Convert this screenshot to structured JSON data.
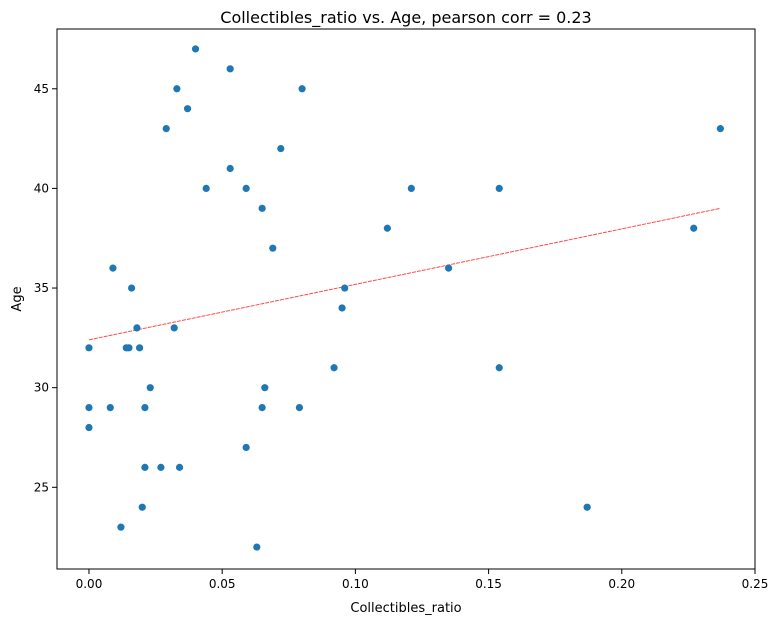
{
  "chart_data": {
    "type": "scatter",
    "title": "Collectibles_ratio vs. Age, pearson corr = 0.23",
    "xlabel": "Collectibles_ratio",
    "ylabel": "Age",
    "xlim": [
      -0.012,
      0.25
    ],
    "ylim": [
      20.9,
      48.0
    ],
    "xticks": [
      "0.00",
      "0.05",
      "0.10",
      "0.15",
      "0.20",
      "0.25"
    ],
    "yticks": [
      "25",
      "30",
      "35",
      "40",
      "45"
    ],
    "grid": false,
    "point_color": "#1f77b4",
    "trend_color": "#ff0000",
    "points": [
      {
        "x": 0.0,
        "y": 32
      },
      {
        "x": 0.0,
        "y": 29
      },
      {
        "x": 0.0,
        "y": 28
      },
      {
        "x": 0.008,
        "y": 29
      },
      {
        "x": 0.009,
        "y": 36
      },
      {
        "x": 0.012,
        "y": 23
      },
      {
        "x": 0.014,
        "y": 32
      },
      {
        "x": 0.015,
        "y": 32
      },
      {
        "x": 0.016,
        "y": 35
      },
      {
        "x": 0.018,
        "y": 33
      },
      {
        "x": 0.019,
        "y": 32
      },
      {
        "x": 0.02,
        "y": 24
      },
      {
        "x": 0.021,
        "y": 26
      },
      {
        "x": 0.021,
        "y": 29
      },
      {
        "x": 0.023,
        "y": 30
      },
      {
        "x": 0.027,
        "y": 26
      },
      {
        "x": 0.029,
        "y": 43
      },
      {
        "x": 0.032,
        "y": 33
      },
      {
        "x": 0.033,
        "y": 45
      },
      {
        "x": 0.034,
        "y": 26
      },
      {
        "x": 0.037,
        "y": 44
      },
      {
        "x": 0.04,
        "y": 47
      },
      {
        "x": 0.044,
        "y": 40
      },
      {
        "x": 0.053,
        "y": 46
      },
      {
        "x": 0.053,
        "y": 41
      },
      {
        "x": 0.059,
        "y": 40
      },
      {
        "x": 0.059,
        "y": 27
      },
      {
        "x": 0.063,
        "y": 22
      },
      {
        "x": 0.065,
        "y": 39
      },
      {
        "x": 0.065,
        "y": 29
      },
      {
        "x": 0.066,
        "y": 30
      },
      {
        "x": 0.069,
        "y": 37
      },
      {
        "x": 0.072,
        "y": 42
      },
      {
        "x": 0.079,
        "y": 29
      },
      {
        "x": 0.08,
        "y": 45
      },
      {
        "x": 0.092,
        "y": 31
      },
      {
        "x": 0.095,
        "y": 34
      },
      {
        "x": 0.096,
        "y": 35
      },
      {
        "x": 0.112,
        "y": 38
      },
      {
        "x": 0.121,
        "y": 40
      },
      {
        "x": 0.135,
        "y": 36
      },
      {
        "x": 0.154,
        "y": 40
      },
      {
        "x": 0.154,
        "y": 31
      },
      {
        "x": 0.187,
        "y": 24
      },
      {
        "x": 0.227,
        "y": 38
      },
      {
        "x": 0.237,
        "y": 43
      }
    ],
    "trend_line": {
      "x": [
        0.0,
        0.237
      ],
      "y": [
        32.4,
        39.0
      ]
    }
  }
}
